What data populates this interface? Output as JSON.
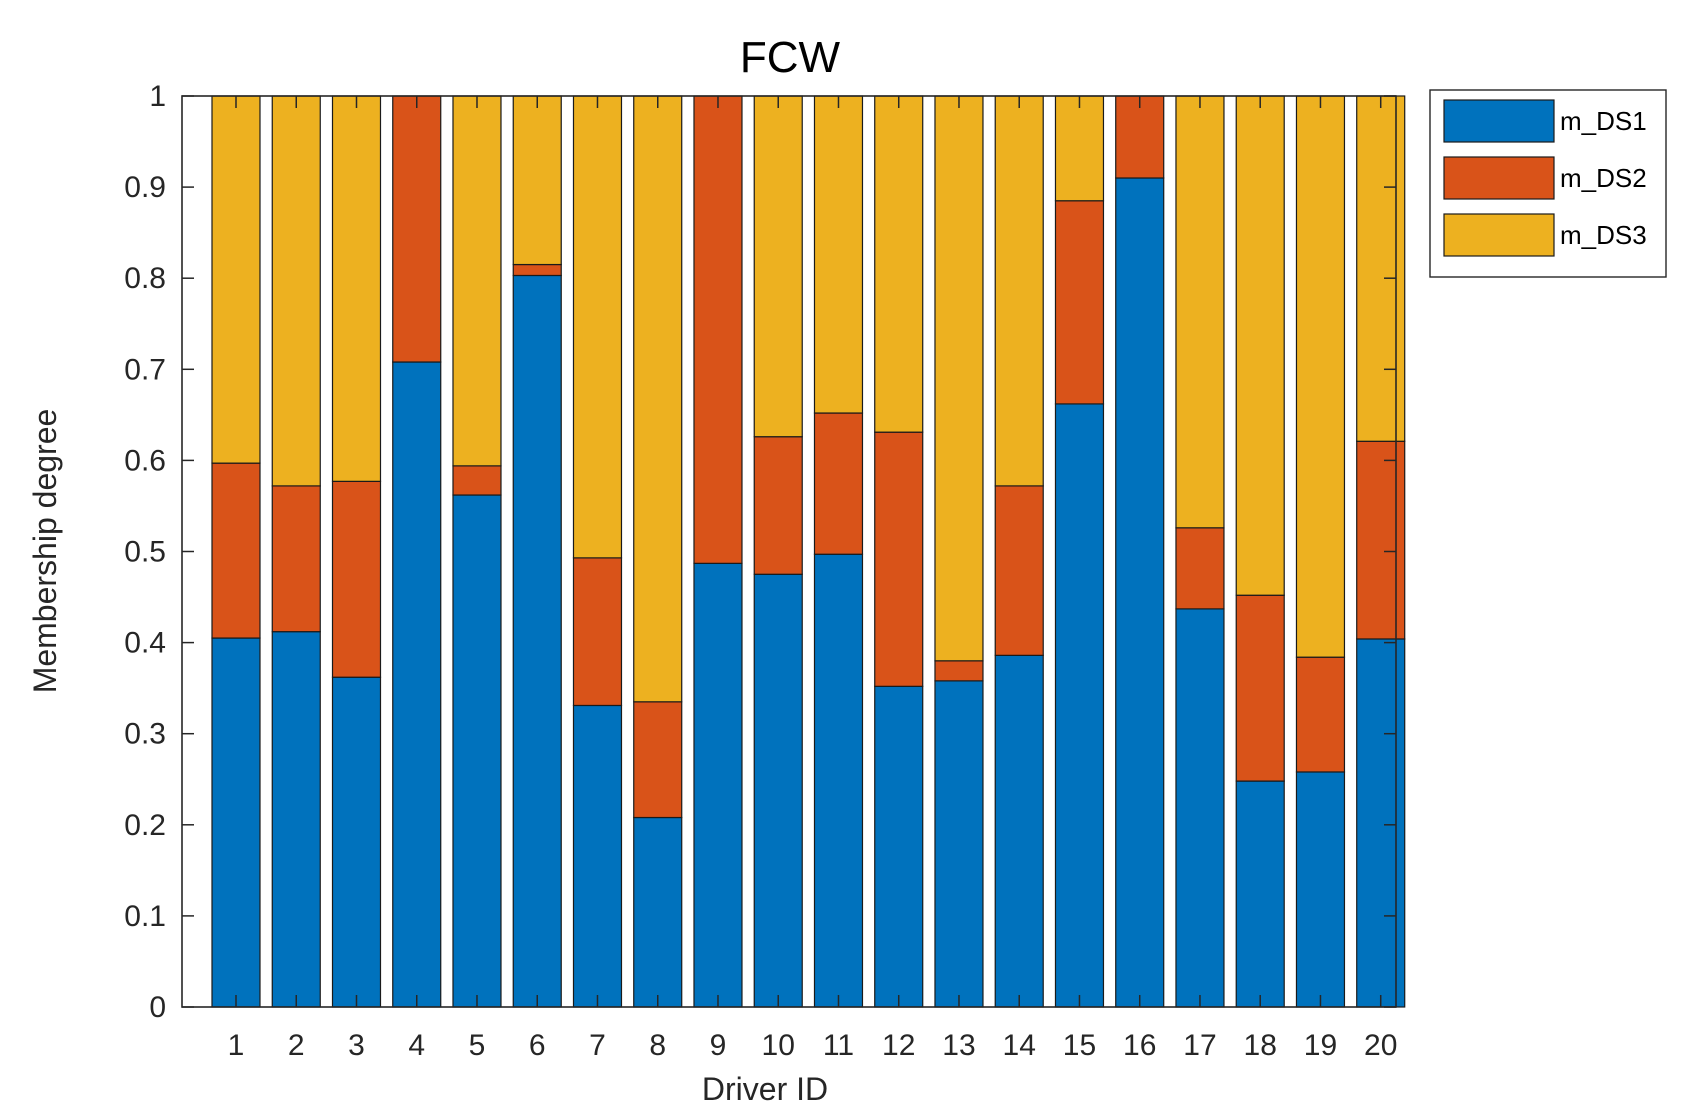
{
  "chart_data": {
    "type": "bar",
    "stacked": true,
    "title": "FCW",
    "xlabel": "Driver ID",
    "ylabel": "Membership degree",
    "ylim": [
      0,
      1
    ],
    "yticks": [
      "0",
      "0.1",
      "0.2",
      "0.3",
      "0.4",
      "0.5",
      "0.6",
      "0.7",
      "0.8",
      "0.9",
      "1"
    ],
    "categories": [
      "1",
      "2",
      "3",
      "4",
      "5",
      "6",
      "7",
      "8",
      "9",
      "10",
      "11",
      "12",
      "13",
      "14",
      "15",
      "16",
      "17",
      "18",
      "19",
      "20"
    ],
    "legend_position": "outside-top-right",
    "grid": false,
    "series": [
      {
        "name": "m_DS1",
        "color": "#0072BD",
        "values": [
          0.405,
          0.412,
          0.362,
          0.708,
          0.562,
          0.803,
          0.331,
          0.208,
          0.487,
          0.475,
          0.497,
          0.352,
          0.358,
          0.386,
          0.662,
          0.91,
          0.437,
          0.248,
          0.258,
          0.404
        ]
      },
      {
        "name": "m_DS2",
        "color": "#D95319",
        "values": [
          0.192,
          0.16,
          0.215,
          0.292,
          0.032,
          0.012,
          0.162,
          0.127,
          0.513,
          0.151,
          0.155,
          0.279,
          0.022,
          0.186,
          0.223,
          0.09,
          0.089,
          0.204,
          0.126,
          0.217
        ]
      },
      {
        "name": "m_DS3",
        "color": "#EDB120",
        "values": [
          0.403,
          0.428,
          0.423,
          0.0,
          0.406,
          0.185,
          0.507,
          0.665,
          0.0,
          0.374,
          0.348,
          0.369,
          0.62,
          0.428,
          0.115,
          0.0,
          0.474,
          0.548,
          0.616,
          0.379
        ]
      }
    ]
  }
}
